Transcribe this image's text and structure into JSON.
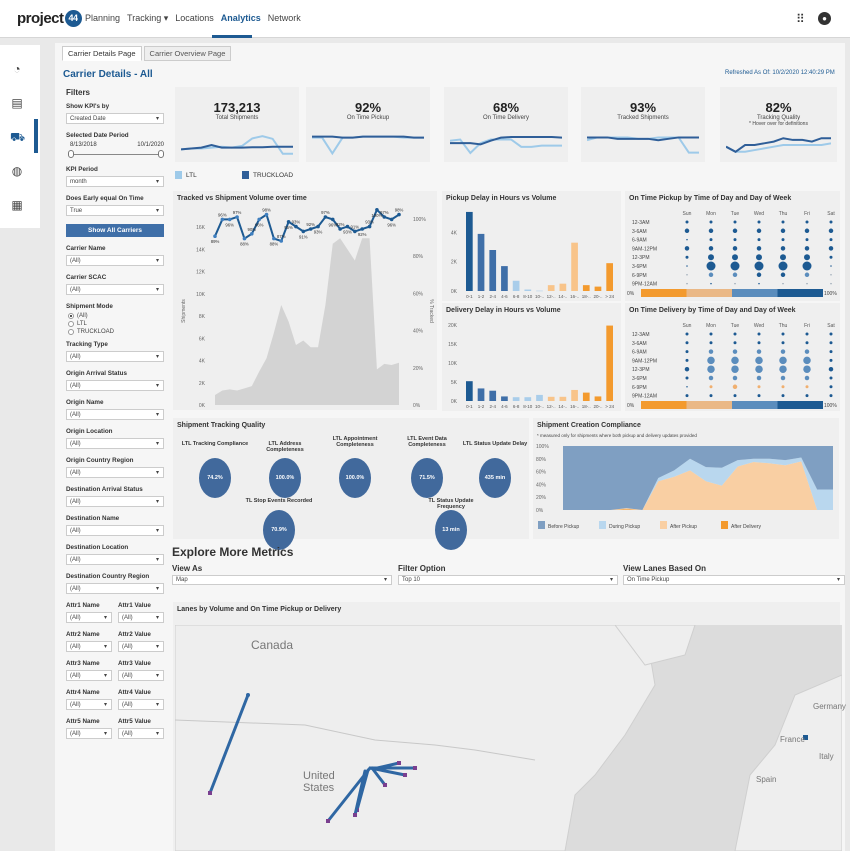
{
  "header": {
    "logo_text": "project",
    "logo_mark": "44",
    "nav": [
      "Planning",
      "Tracking ▾",
      "Locations",
      "Analytics",
      "Network"
    ],
    "active_nav": "Analytics",
    "icons": [
      "apps-grid-icon",
      "user-account-icon"
    ]
  },
  "rail": {
    "icons": [
      "dashboard-gauge-icon",
      "report-icon",
      "truck-icon",
      "globe-icon",
      "map-icon"
    ],
    "active": "truck-icon"
  },
  "tabs": [
    "Carrier Details Page",
    "Carrier Overview Page"
  ],
  "page_title": "Carrier Details - All",
  "refreshed": "Refreshed As Of: 10/2/2020 12:40:29 PM",
  "filters": {
    "heading": "Filters",
    "show_kpis_label": "Show KPI's by",
    "show_kpis_value": "Created Date",
    "date_period_label": "Selected Date Period",
    "date_start": "8/13/2018",
    "date_end": "10/1/2020",
    "kpi_period_label": "KPI Period",
    "kpi_period_value": "month",
    "early_label": "Does Early equal On Time",
    "early_value": "True",
    "show_all_button": "Show All Carriers",
    "carrier_name_label": "Carrier Name",
    "carrier_name_value": "(All)",
    "carrier_scac_label": "Carrier SCAC",
    "carrier_scac_value": "(All)",
    "shipment_mode_label": "Shipment Mode",
    "shipment_modes": [
      "(All)",
      "LTL",
      "TRUCKLOAD"
    ],
    "shipment_mode_selected": "(All)",
    "selects": [
      {
        "label": "Tracking Type",
        "value": "(All)"
      },
      {
        "label": "Origin Arrival Status",
        "value": "(All)"
      },
      {
        "label": "Origin Name",
        "value": "(All)"
      },
      {
        "label": "Origin Location",
        "value": "(All)"
      },
      {
        "label": "Origin Country Region",
        "value": "(All)"
      },
      {
        "label": "Destination Arrival Status",
        "value": "(All)"
      },
      {
        "label": "Destination Name",
        "value": "(All)"
      },
      {
        "label": "Destination Location",
        "value": "(All)"
      },
      {
        "label": "Destination Country Region",
        "value": "(All)"
      }
    ],
    "attrs": [
      {
        "name_label": "Attr1 Name",
        "name_value": "(All)",
        "value_label": "Attr1 Value",
        "value_value": "(All)"
      },
      {
        "name_label": "Attr2 Name",
        "name_value": "(All)",
        "value_label": "Attr2 Value",
        "value_value": "(All)"
      },
      {
        "name_label": "Attr3 Name",
        "name_value": "(All)",
        "value_label": "Attr3 Value",
        "value_value": "(All)"
      },
      {
        "name_label": "Attr4 Name",
        "name_value": "(All)",
        "value_label": "Attr4 Value",
        "value_value": "(All)"
      },
      {
        "name_label": "Attr5 Name",
        "name_value": "(All)",
        "value_label": "Attr5 Value",
        "value_value": "(All)"
      }
    ]
  },
  "kpis": [
    {
      "value": "173,213",
      "label": "Total Shipments",
      "note": "",
      "ltl": [
        20,
        22,
        22,
        24,
        26,
        24,
        28,
        45,
        50,
        44,
        10,
        10
      ],
      "tl": [
        20,
        22,
        24,
        30,
        24,
        24,
        24,
        25,
        25,
        26,
        26,
        26
      ]
    },
    {
      "value": "92%",
      "label": "On Time Pickup",
      "note": "",
      "ltl": [
        90,
        90,
        60,
        90,
        90,
        92,
        92,
        92,
        92,
        90,
        90,
        90
      ],
      "tl": [
        92,
        92,
        92,
        90,
        90,
        92,
        92,
        92,
        92,
        92,
        90,
        90
      ]
    },
    {
      "value": "68%",
      "label": "On Time Delivery",
      "note": "",
      "ltl": [
        70,
        72,
        50,
        66,
        72,
        72,
        72,
        60,
        60,
        62,
        62,
        62
      ],
      "tl": [
        66,
        66,
        66,
        64,
        70,
        75,
        76,
        76,
        76,
        76,
        76,
        75
      ]
    },
    {
      "value": "93%",
      "label": "Tracked Shipments",
      "note": "",
      "ltl": [
        88,
        92,
        92,
        92,
        92,
        90,
        90,
        92,
        92,
        92,
        70,
        70
      ],
      "tl": [
        92,
        92,
        92,
        90,
        90,
        90,
        90,
        88,
        90,
        92,
        92,
        92
      ]
    },
    {
      "value": "82%",
      "label": "Tracking Quality",
      "note": "* Hover over for definitions",
      "ltl": [
        78,
        72,
        72,
        74,
        76,
        78,
        80,
        80,
        80,
        80,
        80,
        82
      ],
      "tl": [
        78,
        72,
        80,
        80,
        82,
        84,
        88,
        86,
        86,
        84,
        88,
        88
      ]
    }
  ],
  "kpi_legend": [
    {
      "label": "LTL",
      "color": "#9ecae9"
    },
    {
      "label": "TRUCKLOAD",
      "color": "#2f5e98"
    }
  ],
  "chart_data": [
    {
      "type": "area+line",
      "title": "Tracked vs Shipment Volume over time",
      "ylabel": "Shipments",
      "y2label": "% Tracked",
      "yticks": [
        "0K",
        "2K",
        "4K",
        "6K",
        "8K",
        "10K",
        "12K",
        "14K",
        "16K"
      ],
      "ylim": [
        0,
        17000
      ],
      "y2ticks": [
        "0%",
        "20%",
        "40%",
        "60%",
        "80%",
        "100%"
      ],
      "y2lim": [
        0,
        100
      ],
      "series": [
        {
          "kind": "area",
          "values": [
            900,
            1300,
            1400,
            1300,
            1500,
            1700,
            3000,
            4200,
            6500,
            9000,
            7500,
            5400,
            5800,
            5200,
            5200,
            9000,
            14500,
            15000,
            14000,
            13000,
            15000,
            15000,
            3200,
            3700,
            3600,
            3800
          ]
        },
        {
          "kind": "line",
          "labels": [
            "89%",
            "96%",
            "96%",
            "97%",
            "88%",
            "90%",
            "96%",
            "98%",
            "88%",
            "87%",
            "95%",
            "93%",
            "91%",
            "92%",
            "93%",
            "97%",
            "96%",
            "92%",
            "93%",
            "91%",
            "92%",
            "93%",
            "100%",
            "97%",
            "96%",
            "98%"
          ],
          "values": [
            89,
            96,
            96,
            97,
            88,
            90,
            96,
            98,
            88,
            87,
            95,
            93,
            91,
            92,
            93,
            97,
            96,
            92,
            93,
            91,
            92,
            93,
            100,
            97,
            96,
            98
          ]
        }
      ]
    },
    {
      "type": "bar",
      "title": "Pickup Delay in Hours vs Volume",
      "categories": [
        "0-1",
        "1-2",
        "2-4",
        "4-6",
        "6-8",
        "8-10",
        "10-..",
        "12-..",
        "14-..",
        "16-..",
        "18-..",
        "20-..",
        "> 24"
      ],
      "values": [
        5400,
        3900,
        2800,
        1700,
        700,
        100,
        20,
        400,
        500,
        3300,
        400,
        300,
        1900
      ],
      "yticks": [
        "0K",
        "2K",
        "4K"
      ],
      "ylim": [
        0,
        5600
      ],
      "colors": [
        "#1d5a92",
        "#3f6fa8",
        "#3f6fa8",
        "#3f6fa8",
        "#a9cdea",
        "#a9cdea",
        "#a9cdea",
        "#f8c48a",
        "#f8c48a",
        "#f8c48a",
        "#f39a2e",
        "#f39a2e",
        "#f39a2e"
      ]
    },
    {
      "type": "bar",
      "title": "Delivery Delay in Hours vs Volume",
      "categories": [
        "0-1",
        "1-2",
        "2-4",
        "4-6",
        "6-8",
        "8-10",
        "10-..",
        "12-..",
        "14-..",
        "16-..",
        "18-..",
        "20-..",
        "> 24"
      ],
      "values": [
        5200,
        3300,
        2700,
        1200,
        1000,
        1000,
        1600,
        1100,
        1100,
        2900,
        2200,
        1200,
        19800
      ],
      "yticks": [
        "0K",
        "5K",
        "10K",
        "15K",
        "20K"
      ],
      "ylim": [
        0,
        21000
      ],
      "colors": [
        "#1d5a92",
        "#3f6fa8",
        "#3f6fa8",
        "#3f6fa8",
        "#a9cdea",
        "#a9cdea",
        "#a9cdea",
        "#f8c48a",
        "#f8c48a",
        "#f8c48a",
        "#f39a2e",
        "#f39a2e",
        "#f39a2e"
      ]
    },
    {
      "type": "heatmap",
      "title": "On Time Pickup by Time of Day and Day of Week",
      "columns": [
        "Sun",
        "Mon",
        "Tue",
        "Wed",
        "Thu",
        "Fri",
        "Sat"
      ],
      "rows": [
        "12-3AM",
        "3-6AM",
        "6-9AM",
        "9AM-12PM",
        "12-3PM",
        "3-6PM",
        "6-9PM",
        "9PM-12AM"
      ],
      "sizes": [
        [
          2,
          2,
          2,
          2,
          2,
          2,
          2
        ],
        [
          3,
          3,
          3,
          3,
          3,
          3,
          3
        ],
        [
          1,
          2,
          2,
          2,
          2,
          2,
          2
        ],
        [
          3,
          3,
          3,
          3,
          3,
          3,
          3
        ],
        [
          2,
          4,
          4,
          4,
          4,
          4,
          2
        ],
        [
          1,
          6,
          6,
          6,
          6,
          6,
          1
        ],
        [
          1,
          3,
          3,
          3,
          3,
          3,
          1
        ],
        [
          1,
          1,
          1,
          1,
          1,
          1,
          1
        ]
      ],
      "colors": [
        [
          "d",
          "d",
          "d",
          "d",
          "d",
          "d",
          "d"
        ],
        [
          "d",
          "d",
          "d",
          "d",
          "d",
          "d",
          "d"
        ],
        [
          "d",
          "d",
          "d",
          "d",
          "d",
          "d",
          "d"
        ],
        [
          "d",
          "d",
          "d",
          "d",
          "d",
          "d",
          "d"
        ],
        [
          "d",
          "d",
          "d",
          "d",
          "d",
          "d",
          "d"
        ],
        [
          "d",
          "d",
          "d",
          "d",
          "d",
          "d",
          "d"
        ],
        [
          "g",
          "m",
          "m",
          "d",
          "d",
          "m",
          "g"
        ],
        [
          "g",
          "d",
          "g",
          "d",
          "g",
          "g",
          "g"
        ]
      ],
      "scale_labels": [
        "0%",
        "100%"
      ],
      "scale_colors": [
        "#f39a2e",
        "#eab886",
        "#5b8dbd",
        "#1d5a92"
      ]
    },
    {
      "type": "heatmap",
      "title": "On Time Delivery by Time of Day and Day of Week",
      "columns": [
        "Sun",
        "Mon",
        "Tue",
        "Wed",
        "Thu",
        "Fri",
        "Sat"
      ],
      "rows": [
        "12-3AM",
        "3-6AM",
        "6-9AM",
        "9AM-12PM",
        "12-3PM",
        "3-6PM",
        "6-9PM",
        "9PM-12AM"
      ],
      "sizes": [
        [
          2,
          2,
          2,
          2,
          2,
          2,
          2
        ],
        [
          2,
          2,
          2,
          2,
          2,
          2,
          2
        ],
        [
          2,
          3,
          3,
          3,
          3,
          3,
          2
        ],
        [
          2,
          5,
          5,
          5,
          5,
          5,
          2
        ],
        [
          3,
          5,
          5,
          5,
          5,
          5,
          3
        ],
        [
          2,
          3,
          3,
          3,
          3,
          3,
          2
        ],
        [
          1,
          2,
          3,
          2,
          2,
          2,
          2
        ],
        [
          2,
          2,
          2,
          2,
          2,
          2,
          2
        ]
      ],
      "colors": [
        [
          "d",
          "d",
          "d",
          "d",
          "d",
          "d",
          "d"
        ],
        [
          "d",
          "d",
          "d",
          "d",
          "d",
          "d",
          "d"
        ],
        [
          "d",
          "m",
          "m",
          "m",
          "m",
          "m",
          "d"
        ],
        [
          "d",
          "m",
          "m",
          "m",
          "m",
          "m",
          "d"
        ],
        [
          "d",
          "m",
          "m",
          "m",
          "m",
          "m",
          "d"
        ],
        [
          "d",
          "m",
          "m",
          "m",
          "m",
          "m",
          "d"
        ],
        [
          "d",
          "o",
          "o",
          "o",
          "o",
          "o",
          "d"
        ],
        [
          "d",
          "d",
          "d",
          "d",
          "d",
          "d",
          "d"
        ]
      ],
      "scale_labels": [
        "0%",
        "100%"
      ],
      "scale_colors": [
        "#f39a2e",
        "#eab886",
        "#5b8dbd",
        "#1d5a92"
      ]
    },
    {
      "type": "area",
      "stacked": true,
      "title": "Shipment Creation Compliance",
      "subtitle": "* measured only for shipments where both pickup and delivery updates provided",
      "yticks": [
        "0%",
        "20%",
        "40%",
        "60%",
        "80%",
        "100%"
      ],
      "ylim": [
        0,
        100
      ],
      "series": [
        {
          "name": "After Delivery",
          "color": "#f39a2e",
          "values": [
            0,
            0,
            0,
            0,
            1,
            0,
            0,
            0,
            0,
            0,
            0,
            0,
            0,
            0,
            0,
            0,
            0,
            0
          ]
        },
        {
          "name": "After Pickup",
          "color": "#f9cfa3",
          "values": [
            0,
            0,
            0,
            0,
            2,
            0,
            45,
            52,
            62,
            45,
            38,
            68,
            75,
            73,
            70,
            76,
            0,
            0
          ]
        },
        {
          "name": "During Pickup",
          "color": "#b9d7ee",
          "values": [
            0,
            0,
            0,
            0,
            0,
            0,
            5,
            10,
            18,
            22,
            28,
            10,
            5,
            7,
            8,
            6,
            32,
            32
          ]
        },
        {
          "name": "Before Pickup",
          "color": "#7f9fc2",
          "values": [
            100,
            100,
            100,
            100,
            97,
            100,
            50,
            38,
            20,
            33,
            34,
            22,
            20,
            20,
            22,
            18,
            68,
            68
          ]
        }
      ],
      "legend_order": [
        "Before Pickup",
        "During Pickup",
        "After Pickup",
        "After Delivery"
      ]
    }
  ],
  "tracking_quality": {
    "title": "Shipment Tracking Quality",
    "metrics": [
      {
        "label": "LTL Tracking Compliance",
        "value": "74.2%"
      },
      {
        "label": "LTL Address Completeness",
        "value": "100.0%"
      },
      {
        "label": "LTL Appointment Completeness",
        "value": "100.0%"
      },
      {
        "label": "LTL Event Data Completeness",
        "value": "71.5%"
      },
      {
        "label": "LTL Status Update Delay",
        "value": "435 min"
      },
      {
        "label": "TL Stop Events Recorded",
        "value": "70.9%"
      },
      {
        "label": "TL Status Update Frequency",
        "value": "13 min"
      }
    ]
  },
  "explore": {
    "heading": "Explore More Metrics",
    "view_as_label": "View As",
    "view_as_value": "Map",
    "filter_label": "Filter Option",
    "filter_value": "Top 10",
    "lanes_label": "View Lanes Based On",
    "lanes_value": "On Time Pickup"
  },
  "map": {
    "title": "Lanes by Volume and On Time Pickup or Delivery",
    "labels": [
      "Canada",
      "United States",
      "Germany",
      "France",
      "Spain",
      "Italy"
    ],
    "lane_color": "#2f67a3",
    "endpoint_color": "#7a3f8f"
  }
}
